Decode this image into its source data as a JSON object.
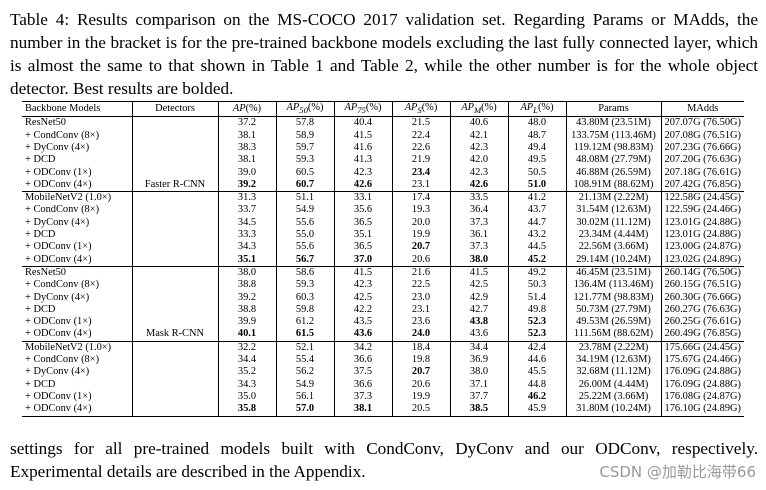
{
  "caption": "Table 4: Results comparison on the MS-COCO 2017 validation set. Regarding Params or MAdds, the number in the bracket is for the pre-trained backbone models excluding the last fully connected layer, which is almost the same to that shown in Table 1 and Table 2, while the other number is for the whole object detector. Best results are bolded.",
  "headers": {
    "backbone": "Backbone Models",
    "detectors": "Detectors",
    "ap": "AP(%)",
    "ap50": "AP50(%)",
    "ap75": "AP75(%)",
    "aps": "APS(%)",
    "apm": "APM(%)",
    "apl": "APL(%)",
    "params": "Params",
    "madds": "MAdds"
  },
  "header_parts": {
    "ap": "AP",
    "ap50": "AP",
    "ap50_sub": "50",
    "ap75": "AP",
    "ap75_sub": "75",
    "aps": "AP",
    "aps_sub": "S",
    "apm": "AP",
    "apm_sub": "M",
    "apl": "AP",
    "apl_sub": "L",
    "pct": "(%)"
  },
  "groups": [
    {
      "detector": "Faster R-CNN",
      "rows": [
        {
          "model": "ResNet50",
          "ap": "37.2",
          "ap50": "57.8",
          "ap75": "40.4",
          "aps": "21.5",
          "apm": "40.6",
          "apl": "48.0",
          "params": "43.80M (23.51M)",
          "madds": "207.07G (76.50G)",
          "bold": []
        },
        {
          "model": "+ CondConv (8×)",
          "ap": "38.1",
          "ap50": "58.9",
          "ap75": "41.5",
          "aps": "22.4",
          "apm": "42.1",
          "apl": "48.7",
          "params": "133.75M (113.46M)",
          "madds": "207.08G (76.51G)",
          "bold": []
        },
        {
          "model": "+ DyConv (4×)",
          "ap": "38.3",
          "ap50": "59.7",
          "ap75": "41.6",
          "aps": "22.6",
          "apm": "42.3",
          "apl": "49.4",
          "params": "119.12M (98.83M)",
          "madds": "207.23G (76.66G)",
          "bold": []
        },
        {
          "model": "+ DCD",
          "ap": "38.1",
          "ap50": "59.3",
          "ap75": "41.3",
          "aps": "21.9",
          "apm": "42.0",
          "apl": "49.5",
          "params": "48.08M (27.79M)",
          "madds": "207.20G (76.63G)",
          "bold": []
        },
        {
          "model": "+ ODConv (1×)",
          "ap": "39.0",
          "ap50": "60.5",
          "ap75": "42.3",
          "aps": "23.4",
          "apm": "42.3",
          "apl": "50.5",
          "params": "46.88M (26.59M)",
          "madds": "207.18G (76.61G)",
          "bold": [
            "aps"
          ]
        },
        {
          "model": "+ ODConv (4×)",
          "ap": "39.2",
          "ap50": "60.7",
          "ap75": "42.6",
          "aps": "23.1",
          "apm": "42.6",
          "apl": "51.0",
          "params": "108.91M (88.62M)",
          "madds": "207.42G (76.85G)",
          "bold": [
            "ap",
            "ap50",
            "ap75",
            "apm",
            "apl"
          ]
        },
        {
          "model": "MobileNetV2 (1.0×)",
          "ap": "31.3",
          "ap50": "51.1",
          "ap75": "33.1",
          "aps": "17.4",
          "apm": "33.5",
          "apl": "41.2",
          "params": "21.13M (2.22M)",
          "madds": "122.58G (24.45G)",
          "bold": []
        },
        {
          "model": "+ CondConv (8×)",
          "ap": "33.7",
          "ap50": "54.9",
          "ap75": "35.6",
          "aps": "19.3",
          "apm": "36.4",
          "apl": "43.7",
          "params": "31.54M (12.63M)",
          "madds": "122.59G (24.46G)",
          "bold": []
        },
        {
          "model": "+ DyConv (4×)",
          "ap": "34.5",
          "ap50": "55.6",
          "ap75": "36.5",
          "aps": "20.0",
          "apm": "37.3",
          "apl": "44.7",
          "params": "30.02M (11.12M)",
          "madds": "123.01G (24.88G)",
          "bold": []
        },
        {
          "model": "+ DCD",
          "ap": "33.3",
          "ap50": "55.0",
          "ap75": "35.1",
          "aps": "19.9",
          "apm": "36.1",
          "apl": "43.2",
          "params": "23.34M (4.44M)",
          "madds": "123.01G (24.88G)",
          "bold": []
        },
        {
          "model": "+ ODConv (1×)",
          "ap": "34.3",
          "ap50": "55.6",
          "ap75": "36.5",
          "aps": "20.7",
          "apm": "37.3",
          "apl": "44.5",
          "params": "22.56M (3.66M)",
          "madds": "123.00G (24.87G)",
          "bold": [
            "aps"
          ]
        },
        {
          "model": "+ ODConv (4×)",
          "ap": "35.1",
          "ap50": "56.7",
          "ap75": "37.0",
          "aps": "20.6",
          "apm": "38.0",
          "apl": "45.2",
          "params": "29.14M (10.24M)",
          "madds": "123.02G (24.89G)",
          "bold": [
            "ap",
            "ap50",
            "ap75",
            "apm",
            "apl"
          ]
        }
      ]
    },
    {
      "detector": "Mask R-CNN",
      "rows": [
        {
          "model": "ResNet50",
          "ap": "38.0",
          "ap50": "58.6",
          "ap75": "41.5",
          "aps": "21.6",
          "apm": "41.5",
          "apl": "49.2",
          "params": "46.45M (23.51M)",
          "madds": "260.14G (76.50G)",
          "bold": []
        },
        {
          "model": "+ CondConv (8×)",
          "ap": "38.8",
          "ap50": "59.3",
          "ap75": "42.3",
          "aps": "22.5",
          "apm": "42.5",
          "apl": "50.3",
          "params": "136.4M (113.46M)",
          "madds": "260.15G (76.51G)",
          "bold": []
        },
        {
          "model": "+ DyConv (4×)",
          "ap": "39.2",
          "ap50": "60.3",
          "ap75": "42.5",
          "aps": "23.0",
          "apm": "42.9",
          "apl": "51.4",
          "params": "121.77M (98.83M)",
          "madds": "260.30G (76.66G)",
          "bold": []
        },
        {
          "model": "+ DCD",
          "ap": "38.8",
          "ap50": "59.8",
          "ap75": "42.2",
          "aps": "23.1",
          "apm": "42.7",
          "apl": "49.8",
          "params": "50.73M (27.79M)",
          "madds": "260.27G (76.63G)",
          "bold": []
        },
        {
          "model": "+ ODConv (1×)",
          "ap": "39.9",
          "ap50": "61.2",
          "ap75": "43.5",
          "aps": "23.6",
          "apm": "43.8",
          "apl": "52.3",
          "params": "49.53M (26.59M)",
          "madds": "260.25G (76.61G)",
          "bold": [
            "apm",
            "apl"
          ]
        },
        {
          "model": "+ ODConv (4×)",
          "ap": "40.1",
          "ap50": "61.5",
          "ap75": "43.6",
          "aps": "24.0",
          "apm": "43.6",
          "apl": "52.3",
          "params": "111.56M (88.62M)",
          "madds": "260.49G (76.85G)",
          "bold": [
            "ap",
            "ap50",
            "ap75",
            "aps",
            "apl"
          ]
        },
        {
          "model": "MobileNetV2 (1.0×)",
          "ap": "32.2",
          "ap50": "52.1",
          "ap75": "34.2",
          "aps": "18.4",
          "apm": "34.4",
          "apl": "42.4",
          "params": "23.78M (2.22M)",
          "madds": "175.66G (24.45G)",
          "bold": []
        },
        {
          "model": "+ CondConv (8×)",
          "ap": "34.4",
          "ap50": "55.4",
          "ap75": "36.6",
          "aps": "19.8",
          "apm": "36.9",
          "apl": "44.6",
          "params": "34.19M (12.63M)",
          "madds": "175.67G (24.46G)",
          "bold": []
        },
        {
          "model": "+ DyConv (4×)",
          "ap": "35.2",
          "ap50": "56.2",
          "ap75": "37.5",
          "aps": "20.7",
          "apm": "38.0",
          "apl": "45.5",
          "params": "32.68M (11.12M)",
          "madds": "176.09G (24.88G)",
          "bold": [
            "aps"
          ]
        },
        {
          "model": "+ DCD",
          "ap": "34.3",
          "ap50": "54.9",
          "ap75": "36.6",
          "aps": "20.6",
          "apm": "37.1",
          "apl": "44.8",
          "params": "26.00M (4.44M)",
          "madds": "176.09G (24.88G)",
          "bold": []
        },
        {
          "model": "+ ODConv (1×)",
          "ap": "35.0",
          "ap50": "56.1",
          "ap75": "37.3",
          "aps": "19.9",
          "apm": "37.7",
          "apl": "46.2",
          "params": "25.22M (3.66M)",
          "madds": "176.08G (24.87G)",
          "bold": [
            "apl"
          ]
        },
        {
          "model": "+ ODConv (4×)",
          "ap": "35.8",
          "ap50": "57.0",
          "ap75": "38.1",
          "aps": "20.5",
          "apm": "38.5",
          "apl": "45.9",
          "params": "31.80M (10.24M)",
          "madds": "176.10G (24.89G)",
          "bold": [
            "ap",
            "ap50",
            "ap75",
            "apm"
          ]
        }
      ]
    }
  ],
  "after_text": "settings for all pre-trained models built with CondConv, DyConv and our ODConv, respectively. Experimental details are described in the Appendix.",
  "watermark": "CSDN @加勒比海带66"
}
